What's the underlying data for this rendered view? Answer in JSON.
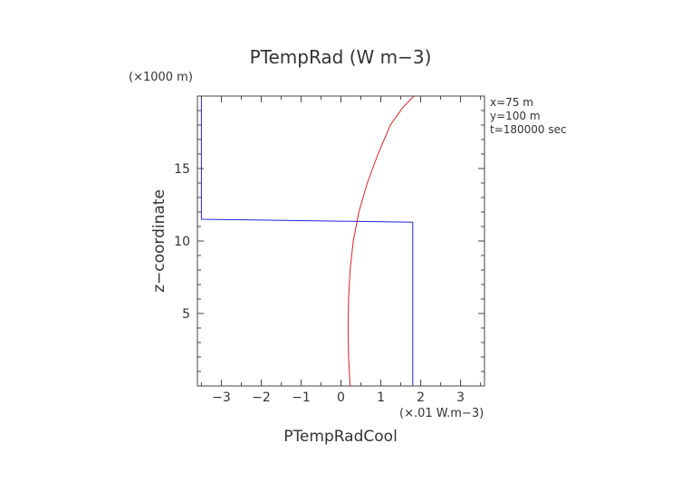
{
  "chart_data": {
    "type": "line",
    "title": "PTempRad (W m−3)",
    "xlabel": "PTempRadCool",
    "ylabel": "z−coordinate",
    "x_unit": "(×.01 W.m−3)",
    "y_unit": "(×1000 m)",
    "xlim": [
      -3.6,
      3.6
    ],
    "ylim": [
      0,
      20
    ],
    "x_ticks": [
      -3,
      -2,
      -1,
      0,
      1,
      2,
      3
    ],
    "x_tick_labels": [
      "−3",
      "−2",
      "−1",
      "0",
      "1",
      "2",
      "3"
    ],
    "y_ticks": [
      5,
      10,
      15
    ],
    "y_tick_labels": [
      "5",
      "10",
      "15"
    ],
    "grid": false,
    "annotations": [
      "x=75 m",
      "y=100 m",
      "t=180000 sec"
    ],
    "series": [
      {
        "color": "#dd2222",
        "x": [
          0.23,
          0.19,
          0.18,
          0.19,
          0.23,
          0.31,
          0.45,
          0.66,
          0.93,
          1.24,
          1.55,
          1.83
        ],
        "y": [
          0,
          2,
          4,
          6,
          8,
          10,
          12,
          14,
          16,
          18,
          19.2,
          20
        ]
      },
      {
        "color": "#2222dd",
        "x": [
          1.8,
          1.8,
          -3.5,
          -3.5
        ],
        "y": [
          0,
          11.3,
          11.5,
          20
        ]
      }
    ]
  }
}
